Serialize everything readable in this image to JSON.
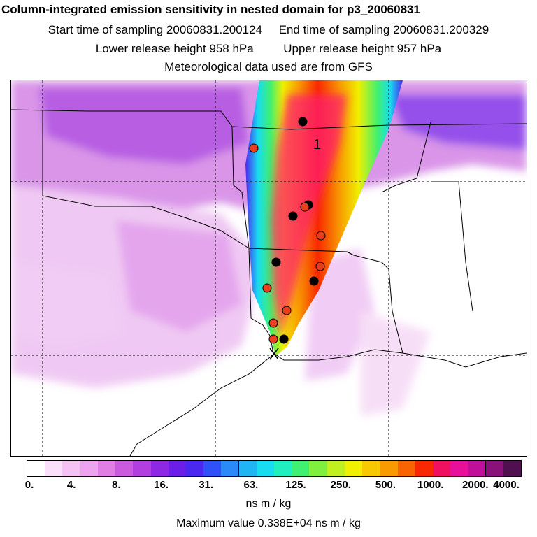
{
  "header": {
    "title": "Column-integrated emission sensitivity in nested domain for p3_20060831",
    "start_label": "Start time of sampling 20060831.200124",
    "end_label": "End time of sampling 20060831.200329",
    "lower_label": "Lower release height  958 hPa",
    "upper_label": "Upper release height  957 hPa",
    "met_label": "Meteorological data used are from GFS"
  },
  "map": {
    "marker_label": "1",
    "release_point_symbol": "X"
  },
  "colorbar": {
    "colors": [
      "#ffffff",
      "#fbe0fb",
      "#f4c2f4",
      "#eca4ee",
      "#e07ee6",
      "#cc5ade",
      "#b23ee0",
      "#8f28e4",
      "#6a1ee8",
      "#4a28f0",
      "#3050f8",
      "#2a8af8",
      "#20b4f4",
      "#18dcf0",
      "#20f0c0",
      "#40f070",
      "#80f040",
      "#c0f020",
      "#f0f000",
      "#f8c800",
      "#f89a00",
      "#f86400",
      "#f82800",
      "#f01060",
      "#e8109a",
      "#c0109a",
      "#8a107a",
      "#501050"
    ],
    "ticks": [
      "0.",
      "4.",
      "8.",
      "16.",
      "31.",
      "63.",
      "125.",
      "250.",
      "500.",
      "1000.",
      "2000.",
      "4000."
    ],
    "units": "ns m / kg"
  },
  "footer": {
    "max_value": "Maximum value  0.338E+04 ns m / kg"
  }
}
